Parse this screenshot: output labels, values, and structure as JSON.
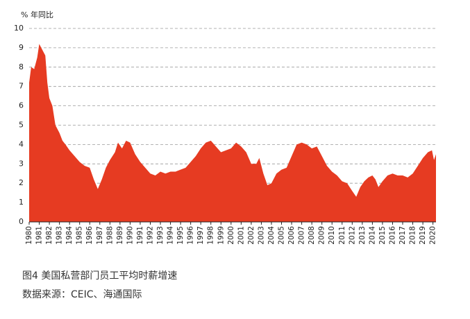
{
  "chart_data": {
    "type": "area",
    "ylabel": "% 年同比",
    "caption": "图4 美国私营部门员工平均时薪增速",
    "source": "数据来源：CEIC、海通国际",
    "color": "#e63b22",
    "grid": true,
    "xlim": [
      1980,
      2020.3
    ],
    "ylim": [
      0,
      10
    ],
    "yticks": [
      0,
      1,
      2,
      3,
      4,
      5,
      6,
      7,
      8,
      9,
      10
    ],
    "xticks": [
      1980,
      1981,
      1982,
      1983,
      1984,
      1985,
      1986,
      1987,
      1988,
      1989,
      1990,
      1991,
      1992,
      1993,
      1994,
      1995,
      1996,
      1997,
      1998,
      1999,
      2000,
      2001,
      2002,
      2003,
      2004,
      2005,
      2006,
      2007,
      2008,
      2009,
      2010,
      2011,
      2012,
      2013,
      2014,
      2015,
      2016,
      2017,
      2018,
      2019,
      2020
    ],
    "x": [
      1980.0,
      1980.2,
      1980.5,
      1980.8,
      1981.0,
      1981.3,
      1981.6,
      1981.8,
      1982.0,
      1982.3,
      1982.6,
      1983.0,
      1983.3,
      1983.6,
      1984.0,
      1984.5,
      1985.0,
      1985.5,
      1986.0,
      1986.4,
      1986.8,
      1987.2,
      1987.6,
      1988.0,
      1988.5,
      1988.8,
      1989.2,
      1989.6,
      1990.0,
      1990.5,
      1991.0,
      1991.5,
      1992.0,
      1992.5,
      1993.0,
      1993.5,
      1994.0,
      1994.5,
      1995.0,
      1995.5,
      1996.0,
      1996.5,
      1997.0,
      1997.5,
      1998.0,
      1998.5,
      1999.0,
      1999.5,
      2000.0,
      2000.5,
      2001.0,
      2001.5,
      2002.0,
      2002.5,
      2002.8,
      2003.2,
      2003.6,
      2004.0,
      2004.5,
      2005.0,
      2005.5,
      2006.0,
      2006.5,
      2007.0,
      2007.5,
      2008.0,
      2008.5,
      2009.0,
      2009.5,
      2010.0,
      2010.5,
      2011.0,
      2011.5,
      2012.0,
      2012.4,
      2012.8,
      2013.2,
      2013.6,
      2014.0,
      2014.3,
      2014.6,
      2015.0,
      2015.5,
      2016.0,
      2016.5,
      2017.0,
      2017.5,
      2018.0,
      2018.5,
      2019.0,
      2019.5,
      2019.9,
      2020.1,
      2020.3
    ],
    "values": [
      7.2,
      8.0,
      7.9,
      8.5,
      9.2,
      8.9,
      8.6,
      7.2,
      6.4,
      6.0,
      5.0,
      4.6,
      4.2,
      4.0,
      3.7,
      3.4,
      3.1,
      2.9,
      2.8,
      2.2,
      1.7,
      2.2,
      2.8,
      3.2,
      3.6,
      4.1,
      3.8,
      4.2,
      4.1,
      3.5,
      3.1,
      2.8,
      2.5,
      2.4,
      2.6,
      2.5,
      2.6,
      2.6,
      2.7,
      2.8,
      3.1,
      3.4,
      3.8,
      4.1,
      4.2,
      3.9,
      3.6,
      3.7,
      3.8,
      4.1,
      3.9,
      3.6,
      3.0,
      3.0,
      3.3,
      2.5,
      1.9,
      2.0,
      2.5,
      2.7,
      2.8,
      3.4,
      4.0,
      4.1,
      4.0,
      3.8,
      3.9,
      3.4,
      2.9,
      2.6,
      2.4,
      2.1,
      2.0,
      1.6,
      1.3,
      1.8,
      2.1,
      2.3,
      2.4,
      2.2,
      1.8,
      2.1,
      2.4,
      2.5,
      2.4,
      2.4,
      2.3,
      2.5,
      2.9,
      3.3,
      3.6,
      3.7,
      3.2,
      3.5
    ]
  }
}
